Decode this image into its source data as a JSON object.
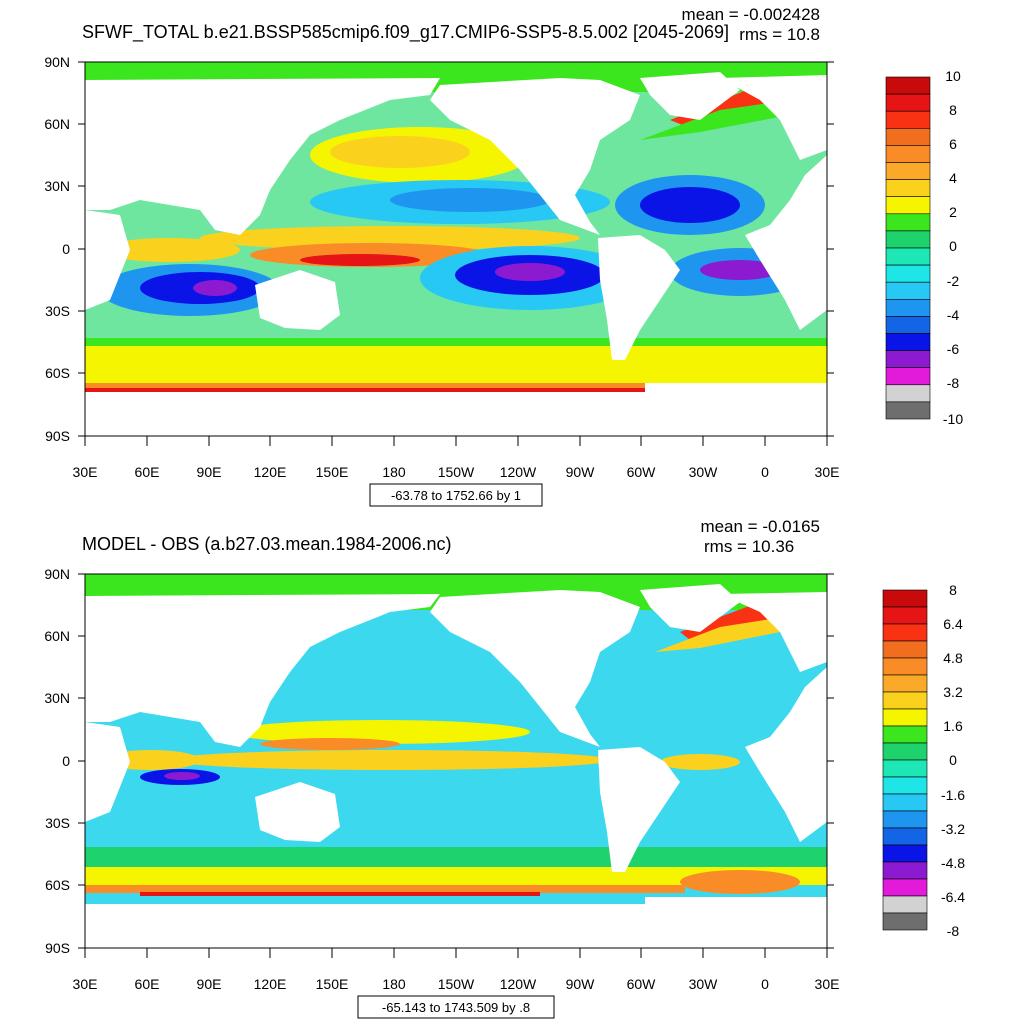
{
  "panels": [
    {
      "title": "SFWF_TOTAL b.e21.BSSP585cmip6.f09_g17.CMIP6-SSP5-8.5.002 [2045-2069]",
      "mean_label": "mean = -0.002428",
      "rms_label": "rms = 10.8",
      "range_label": "-63.78 to 1752.66 by 1",
      "colorbar_labels": [
        "10",
        "8",
        "6",
        "4",
        "2",
        "0",
        "-2",
        "-4",
        "-6",
        "-8",
        "-10"
      ]
    },
    {
      "title": "MODEL - OBS (a.b27.03.mean.1984-2006.nc)",
      "mean_label": "mean = -0.0165",
      "rms_label": "rms = 10.36",
      "range_label": "-65.143 to 1743.509 by .8",
      "colorbar_labels": [
        "8",
        "6.4",
        "4.8",
        "3.2",
        "1.6",
        "0",
        "-1.6",
        "-3.2",
        "-4.8",
        "-6.4",
        "-8"
      ]
    }
  ],
  "axes": {
    "lat_labels": [
      "90N",
      "60N",
      "30N",
      "0",
      "30S",
      "60S",
      "90S"
    ],
    "lon_labels": [
      "30E",
      "60E",
      "90E",
      "120E",
      "150E",
      "180",
      "150W",
      "120W",
      "90W",
      "60W",
      "30W",
      "0",
      "30E"
    ]
  },
  "colors": {
    "palette": [
      "#6e6e6e",
      "#d2d2d2",
      "#e21ad9",
      "#8c1ad0",
      "#0a14e6",
      "#1464e6",
      "#1e96f0",
      "#28c8f5",
      "#1ee6e6",
      "#1ee6b4",
      "#1ed26e",
      "#3ce61e",
      "#f5f500",
      "#fad21e",
      "#faaa28",
      "#fa8c28",
      "#f06e1e",
      "#fa3214",
      "#e61414",
      "#c80a0a"
    ],
    "land": "#ffffff",
    "ocean_top": "#6ee6a0",
    "ocean_bottom": "#3cd8ee"
  }
}
